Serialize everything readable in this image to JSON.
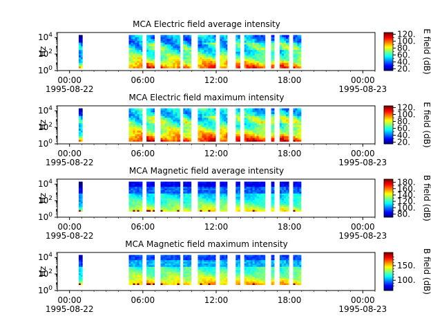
{
  "chart_data": [
    {
      "type": "heatmap",
      "title": "MCA  Electric field average intensity",
      "ylabel": "Hz",
      "yscale": "log",
      "ylim": [
        1,
        40000
      ],
      "y_ticks": [
        {
          "v": 1,
          "b": "10",
          "e": "0"
        },
        {
          "v": 100,
          "b": "10",
          "e": "2"
        },
        {
          "v": 10000,
          "b": "10",
          "e": "4"
        }
      ],
      "x_ticks": [
        "00:00",
        "06:00",
        "12:00",
        "18:00",
        "00:00"
      ],
      "x_tick_hours": [
        0,
        6,
        12,
        18,
        24
      ],
      "date_labels": [
        "1995-08-22",
        "1995-08-23"
      ],
      "xlim_hours": [
        -1,
        25
      ],
      "colorbar_label": "E field (dB)",
      "colorbar_ticks": [
        20,
        40,
        60,
        80,
        100,
        120
      ],
      "colorbar_minor": [
        30,
        50,
        70,
        90,
        110
      ],
      "colorbar_range": [
        15,
        125
      ],
      "field": "electric",
      "intensity": "average",
      "data_segments_hours": [
        [
          0.75,
          1.05
        ],
        [
          4.85,
          5.95
        ],
        [
          6.3,
          6.95
        ],
        [
          7.45,
          9.05
        ],
        [
          9.3,
          9.95
        ],
        [
          10.5,
          11.95
        ],
        [
          12.3,
          12.9
        ],
        [
          13.6,
          13.95
        ],
        [
          14.3,
          16.0
        ],
        [
          16.5,
          16.75
        ],
        [
          17.2,
          17.95
        ],
        [
          18.3,
          18.95
        ]
      ]
    },
    {
      "type": "heatmap",
      "title": "MCA  Electric field maximum intensity",
      "ylabel": "Hz",
      "yscale": "log",
      "ylim": [
        1,
        40000
      ],
      "y_ticks": [
        {
          "v": 1,
          "b": "10",
          "e": "0"
        },
        {
          "v": 100,
          "b": "10",
          "e": "2"
        },
        {
          "v": 10000,
          "b": "10",
          "e": "4"
        }
      ],
      "x_ticks": [
        "00:00",
        "06:00",
        "12:00",
        "18:00",
        "00:00"
      ],
      "x_tick_hours": [
        0,
        6,
        12,
        18,
        24
      ],
      "date_labels": [
        "1995-08-22",
        "1995-08-23"
      ],
      "xlim_hours": [
        -1,
        25
      ],
      "colorbar_label": "E field (dB)",
      "colorbar_ticks": [
        20,
        40,
        60,
        80,
        100,
        120
      ],
      "colorbar_minor": [
        30,
        50,
        70,
        90,
        110
      ],
      "colorbar_range": [
        15,
        125
      ],
      "field": "electric",
      "intensity": "maximum",
      "data_segments_hours": [
        [
          0.75,
          1.05
        ],
        [
          4.85,
          5.95
        ],
        [
          6.3,
          6.95
        ],
        [
          7.45,
          9.05
        ],
        [
          9.3,
          9.95
        ],
        [
          10.5,
          11.95
        ],
        [
          12.3,
          12.9
        ],
        [
          13.6,
          13.95
        ],
        [
          14.3,
          16.0
        ],
        [
          16.5,
          16.75
        ],
        [
          17.2,
          17.95
        ],
        [
          18.3,
          18.95
        ]
      ]
    },
    {
      "type": "heatmap",
      "title": "MCA  Magnetic field average intensity",
      "ylabel": "Hz",
      "yscale": "log",
      "ylim": [
        1,
        40000
      ],
      "y_ticks": [
        {
          "v": 1,
          "b": "10",
          "e": "0"
        },
        {
          "v": 100,
          "b": "10",
          "e": "2"
        },
        {
          "v": 10000,
          "b": "10",
          "e": "4"
        }
      ],
      "x_ticks": [
        "00:00",
        "06:00",
        "12:00",
        "18:00",
        "00:00"
      ],
      "x_tick_hours": [
        0,
        6,
        12,
        18,
        24
      ],
      "date_labels": [
        "1995-08-22",
        "1995-08-23"
      ],
      "xlim_hours": [
        -1,
        25
      ],
      "colorbar_label": "B field (dB)",
      "colorbar_ticks": [
        80,
        100,
        120,
        140,
        160,
        180
      ],
      "colorbar_minor": [
        90,
        110,
        130,
        150,
        170
      ],
      "colorbar_range": [
        70,
        190
      ],
      "field": "magnetic",
      "intensity": "average",
      "data_segments_hours": [
        [
          0.75,
          1.05
        ],
        [
          4.85,
          5.95
        ],
        [
          6.3,
          6.95
        ],
        [
          7.45,
          9.05
        ],
        [
          9.3,
          9.95
        ],
        [
          10.5,
          11.95
        ],
        [
          12.3,
          12.9
        ],
        [
          13.6,
          13.95
        ],
        [
          14.3,
          16.0
        ],
        [
          16.5,
          16.75
        ],
        [
          17.2,
          17.95
        ],
        [
          18.3,
          18.95
        ]
      ]
    },
    {
      "type": "heatmap",
      "title": "MCA  Magnetic field maximum intensity",
      "ylabel": "Hz",
      "yscale": "log",
      "ylim": [
        1,
        40000
      ],
      "y_ticks": [
        {
          "v": 1,
          "b": "10",
          "e": "0"
        },
        {
          "v": 100,
          "b": "10",
          "e": "2"
        },
        {
          "v": 10000,
          "b": "10",
          "e": "4"
        }
      ],
      "x_ticks": [
        "00:00",
        "06:00",
        "12:00",
        "18:00",
        "00:00"
      ],
      "x_tick_hours": [
        0,
        6,
        12,
        18,
        24
      ],
      "date_labels": [
        "1995-08-22",
        "1995-08-23"
      ],
      "xlim_hours": [
        -1,
        25
      ],
      "colorbar_label": "B field (dB)",
      "colorbar_ticks": [
        100,
        150
      ],
      "colorbar_minor": [
        80,
        90,
        110,
        120,
        130,
        140,
        160,
        170,
        180
      ],
      "colorbar_range": [
        65,
        195
      ],
      "field": "magnetic",
      "intensity": "maximum",
      "data_segments_hours": [
        [
          0.75,
          1.05
        ],
        [
          4.85,
          5.95
        ],
        [
          6.3,
          6.95
        ],
        [
          7.45,
          9.05
        ],
        [
          9.3,
          9.95
        ],
        [
          10.5,
          11.95
        ],
        [
          12.3,
          12.9
        ],
        [
          13.6,
          13.95
        ],
        [
          14.3,
          16.0
        ],
        [
          16.5,
          16.75
        ],
        [
          17.2,
          17.95
        ],
        [
          18.3,
          18.95
        ]
      ]
    }
  ],
  "colormap": [
    "#00007f",
    "#0000ff",
    "#007fff",
    "#00ffff",
    "#7fff7f",
    "#ffff00",
    "#ff7f00",
    "#ff0000",
    "#7f0000"
  ]
}
